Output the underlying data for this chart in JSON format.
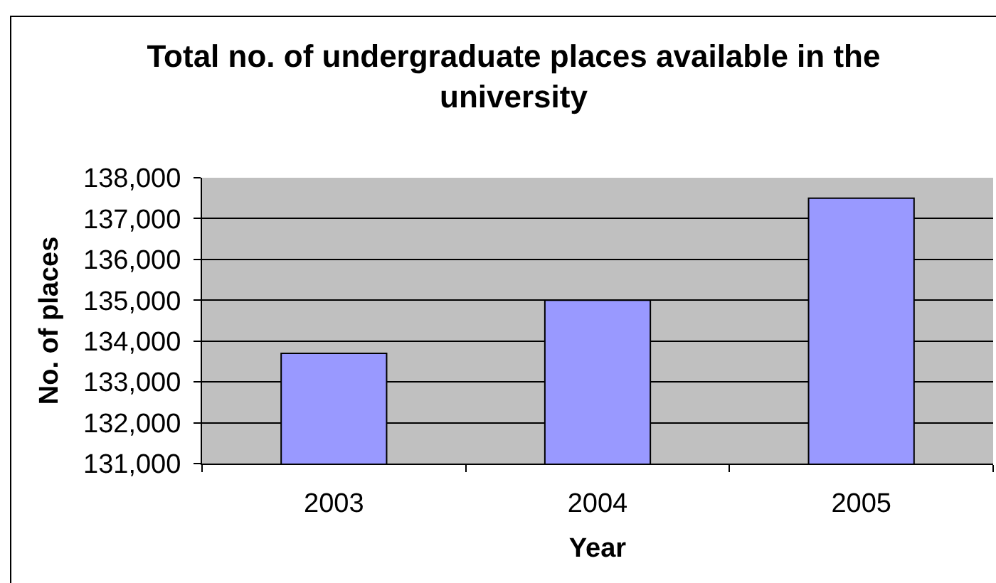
{
  "chart_data": {
    "type": "bar",
    "title": "Total no. of undergraduate places available in the university",
    "xlabel": "Year",
    "ylabel": "No. of places",
    "categories": [
      "2003",
      "2004",
      "2005"
    ],
    "values": [
      133700,
      135000,
      137500
    ],
    "color": "#9999ff",
    "ylim": [
      131000,
      138000
    ],
    "yticks": [
      {
        "value": 131000,
        "label": "131,000"
      },
      {
        "value": 132000,
        "label": "132,000"
      },
      {
        "value": 133000,
        "label": "133,000"
      },
      {
        "value": 134000,
        "label": "134,000"
      },
      {
        "value": 135000,
        "label": "135,000"
      },
      {
        "value": 136000,
        "label": "136,000"
      },
      {
        "value": 137000,
        "label": "137,000"
      },
      {
        "value": 138000,
        "label": "138,000"
      }
    ],
    "grid": "y"
  }
}
